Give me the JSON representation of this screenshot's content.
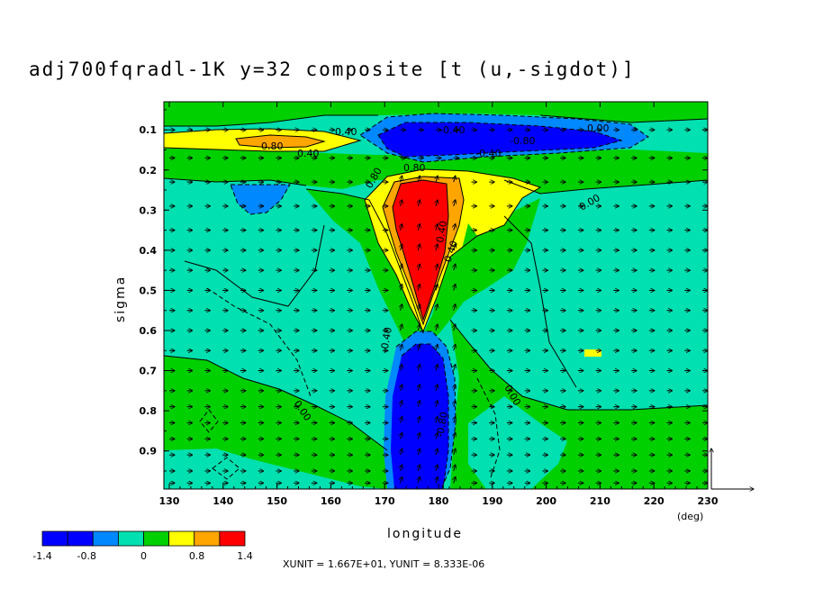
{
  "chart_data": {
    "type": "heatmap",
    "title": "adj700fqradl-1K y=32 composite [t (u,-sigdot)]",
    "xlabel": "longitude",
    "ylabel": "sigma",
    "xunit_label": "(deg)",
    "xlim": [
      129,
      230
    ],
    "ylim": [
      0.03,
      0.995
    ],
    "x_ticks": [
      "130",
      "140",
      "150",
      "160",
      "170",
      "180",
      "190",
      "200",
      "210",
      "220",
      "230"
    ],
    "y_ticks": [
      "0.1",
      "0.2",
      "0.3",
      "0.4",
      "0.5",
      "0.6",
      "0.7",
      "0.8",
      "0.9"
    ],
    "colorbar": {
      "levels": [
        -1.4,
        -1.05,
        -0.7,
        -0.35,
        0,
        0.35,
        0.7,
        1.05,
        1.4
      ],
      "colors": [
        "#0000ff",
        "#0088ff",
        "#00e0b0",
        "#00d000",
        "#ffff00",
        "#ff8800",
        "#ff0000"
      ],
      "labels": [
        "-1.4",
        "-0.8",
        "0",
        "0.8",
        "1.4"
      ]
    },
    "contour_labels": [
      "0.80",
      "0.40",
      "0.40",
      "0.00",
      "-0.40",
      "-0.80",
      "0.80",
      "-0.40",
      "0.80",
      "0.00",
      "0.40",
      "-0.40",
      "0.40",
      "0.00",
      "0.00",
      "-0.80"
    ],
    "vector_units": "XUNIT = 1.667E+01, YUNIT = 8.333E-06"
  }
}
